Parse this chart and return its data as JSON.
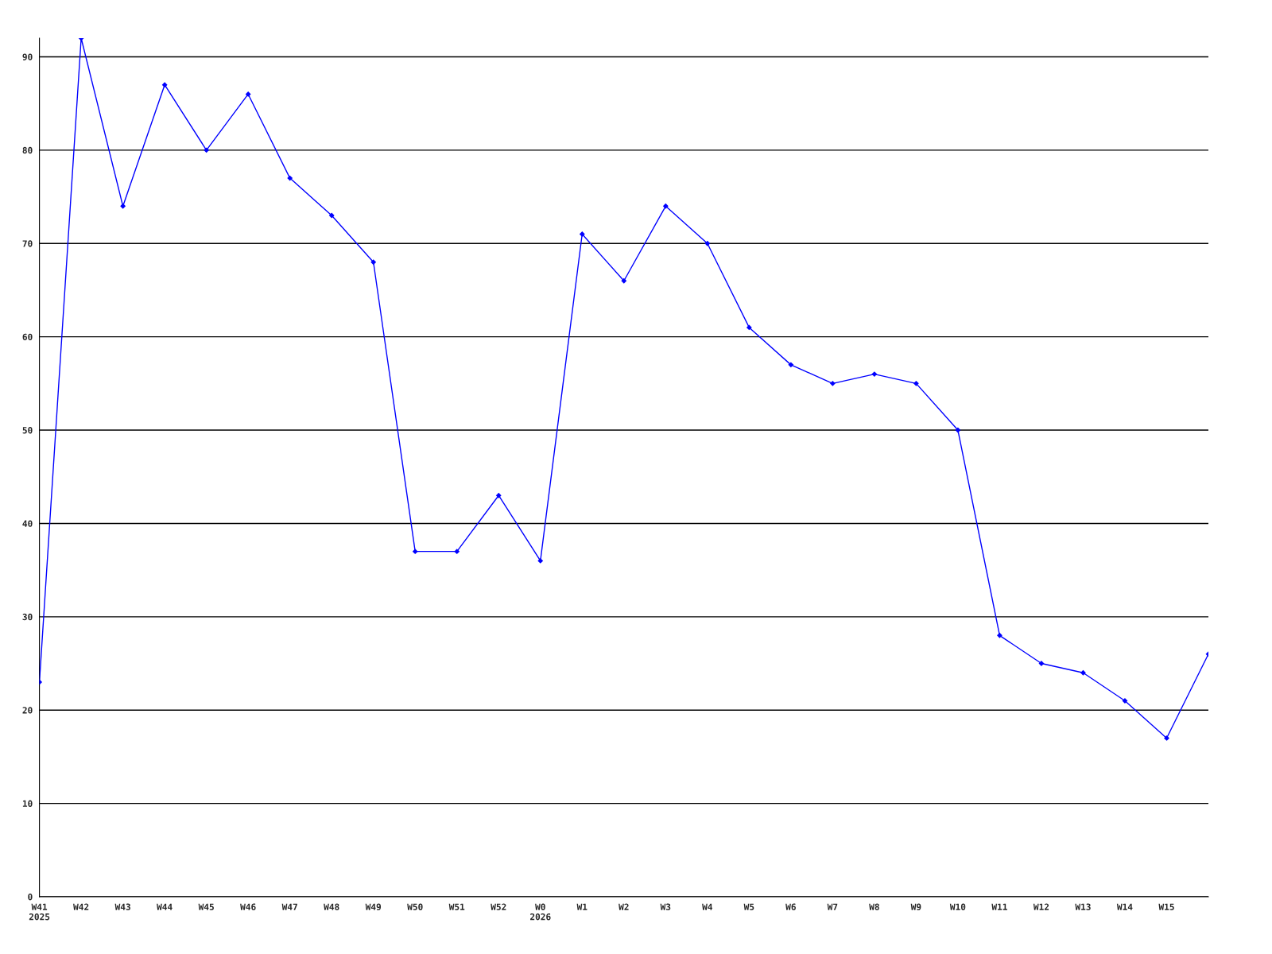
{
  "chart_data": {
    "type": "line",
    "categories": [
      "W41\n2025",
      "W42",
      "W43",
      "W44",
      "W45",
      "W46",
      "W47",
      "W48",
      "W49",
      "W50",
      "W51",
      "W52",
      "W0\n2026",
      "W1",
      "W2",
      "W3",
      "W4",
      "W5",
      "W6",
      "W7",
      "W8",
      "W9",
      "W10",
      "W11",
      "W12",
      "W13",
      "W14",
      "W15",
      null
    ],
    "series": [
      {
        "color": "#0000ff",
        "values": [
          23,
          92,
          74,
          87,
          80,
          86,
          77,
          73,
          68,
          37,
          37,
          43,
          36,
          71,
          66,
          74,
          70,
          61,
          57,
          55,
          56,
          55,
          50,
          28,
          25,
          24,
          21,
          17,
          26
        ]
      }
    ],
    "ylim": [
      0,
      92
    ],
    "yticks": [
      0,
      10,
      20,
      30,
      40,
      50,
      60,
      70,
      80,
      90
    ],
    "grid": "y",
    "marker": "diamond",
    "line_style": "solid"
  }
}
